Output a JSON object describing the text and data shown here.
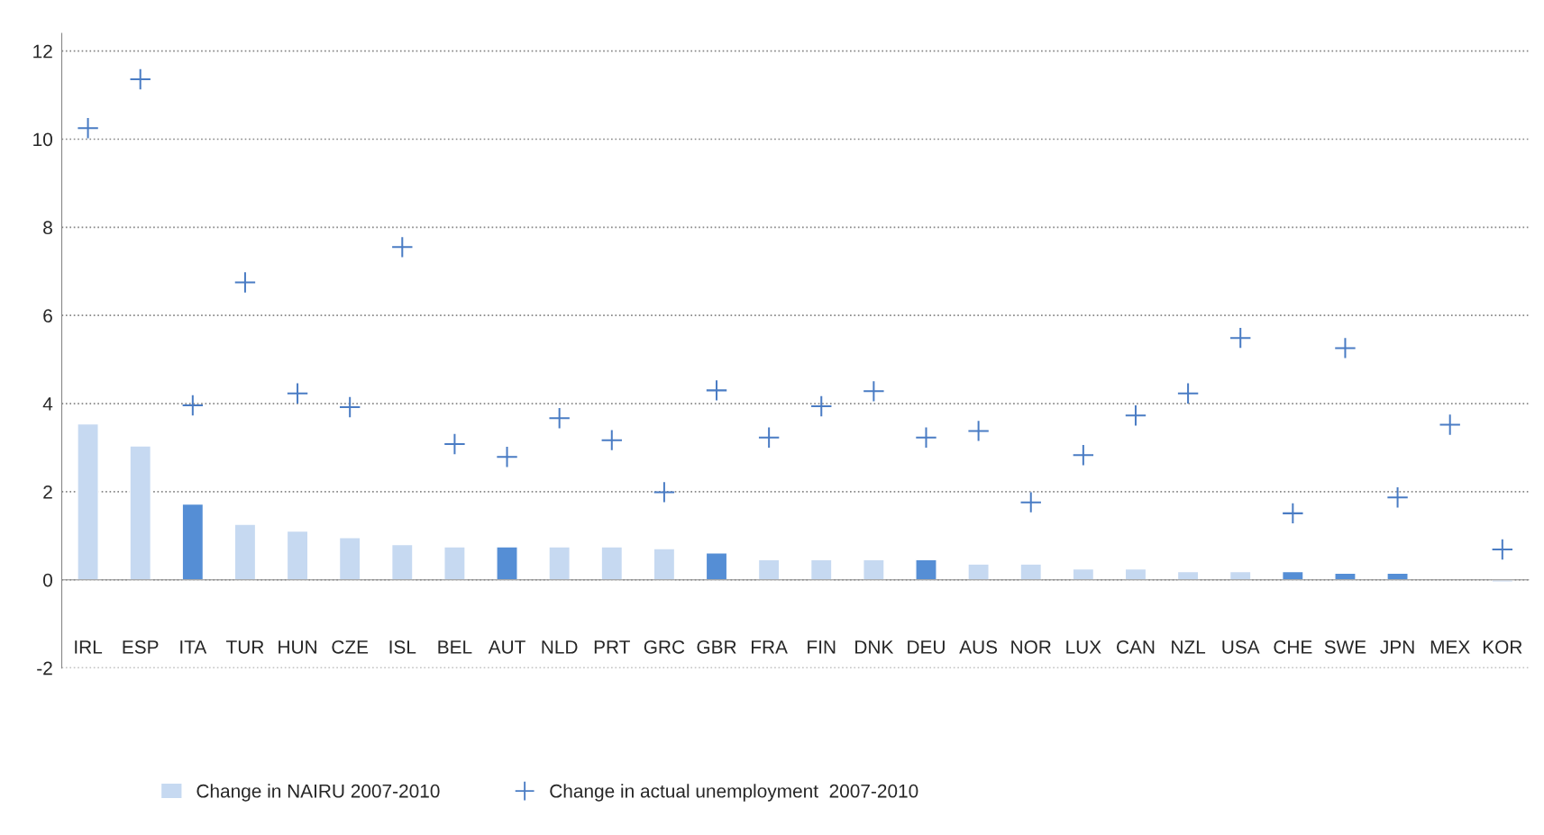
{
  "chart_data": {
    "type": "bar",
    "categories": [
      "IRL",
      "ESP",
      "ITA",
      "TUR",
      "HUN",
      "CZE",
      "ISL",
      "BEL",
      "AUT",
      "NLD",
      "PRT",
      "GRC",
      "GBR",
      "FRA",
      "FIN",
      "DNK",
      "DEU",
      "AUS",
      "NOR",
      "LUX",
      "CAN",
      "NZL",
      "USA",
      "CHE",
      "SWE",
      "JPN",
      "MEX",
      "KOR"
    ],
    "series": [
      {
        "name": "Change in NAIRU 2007-2010",
        "color": "#c6d9f1",
        "colors": [
          "#c6d9f1",
          "#c6d9f1",
          "#558ed5",
          "#c6d9f1",
          "#c6d9f1",
          "#c6d9f1",
          "#c6d9f1",
          "#c6d9f1",
          "#558ed5",
          "#c6d9f1",
          "#c6d9f1",
          "#c6d9f1",
          "#558ed5",
          "#c6d9f1",
          "#c6d9f1",
          "#c6d9f1",
          "#558ed5",
          "#c6d9f1",
          "#c6d9f1",
          "#c6d9f1",
          "#c6d9f1",
          "#c6d9f1",
          "#c6d9f1",
          "#558ed5",
          "#558ed5",
          "#558ed5",
          "#c6d9f1",
          "#c6d9f1"
        ],
        "values": [
          3.54,
          3.04,
          1.72,
          1.26,
          1.11,
          0.96,
          0.8,
          0.75,
          0.75,
          0.75,
          0.75,
          0.71,
          0.61,
          0.46,
          0.46,
          0.46,
          0.46,
          0.36,
          0.36,
          0.25,
          0.25,
          0.19,
          0.19,
          0.19,
          0.15,
          0.15,
          null,
          -0.05
        ]
      },
      {
        "name": "Change in actual unemployment  2007-2010",
        "type": "scatter",
        "color": "#4a7cc4",
        "marker": "cross",
        "values": [
          10.25,
          11.36,
          3.96,
          6.75,
          4.23,
          3.92,
          7.55,
          3.08,
          2.79,
          3.67,
          3.17,
          1.99,
          4.3,
          3.23,
          3.94,
          4.28,
          3.23,
          3.38,
          1.76,
          2.83,
          3.73,
          4.23,
          5.49,
          1.51,
          5.26,
          1.87,
          3.52,
          0.69
        ]
      }
    ],
    "ylim": [
      -2,
      12.4
    ],
    "yticks": [
      -2,
      0,
      2,
      4,
      6,
      8,
      10,
      12
    ],
    "grid": "y",
    "legend": "bottom"
  }
}
